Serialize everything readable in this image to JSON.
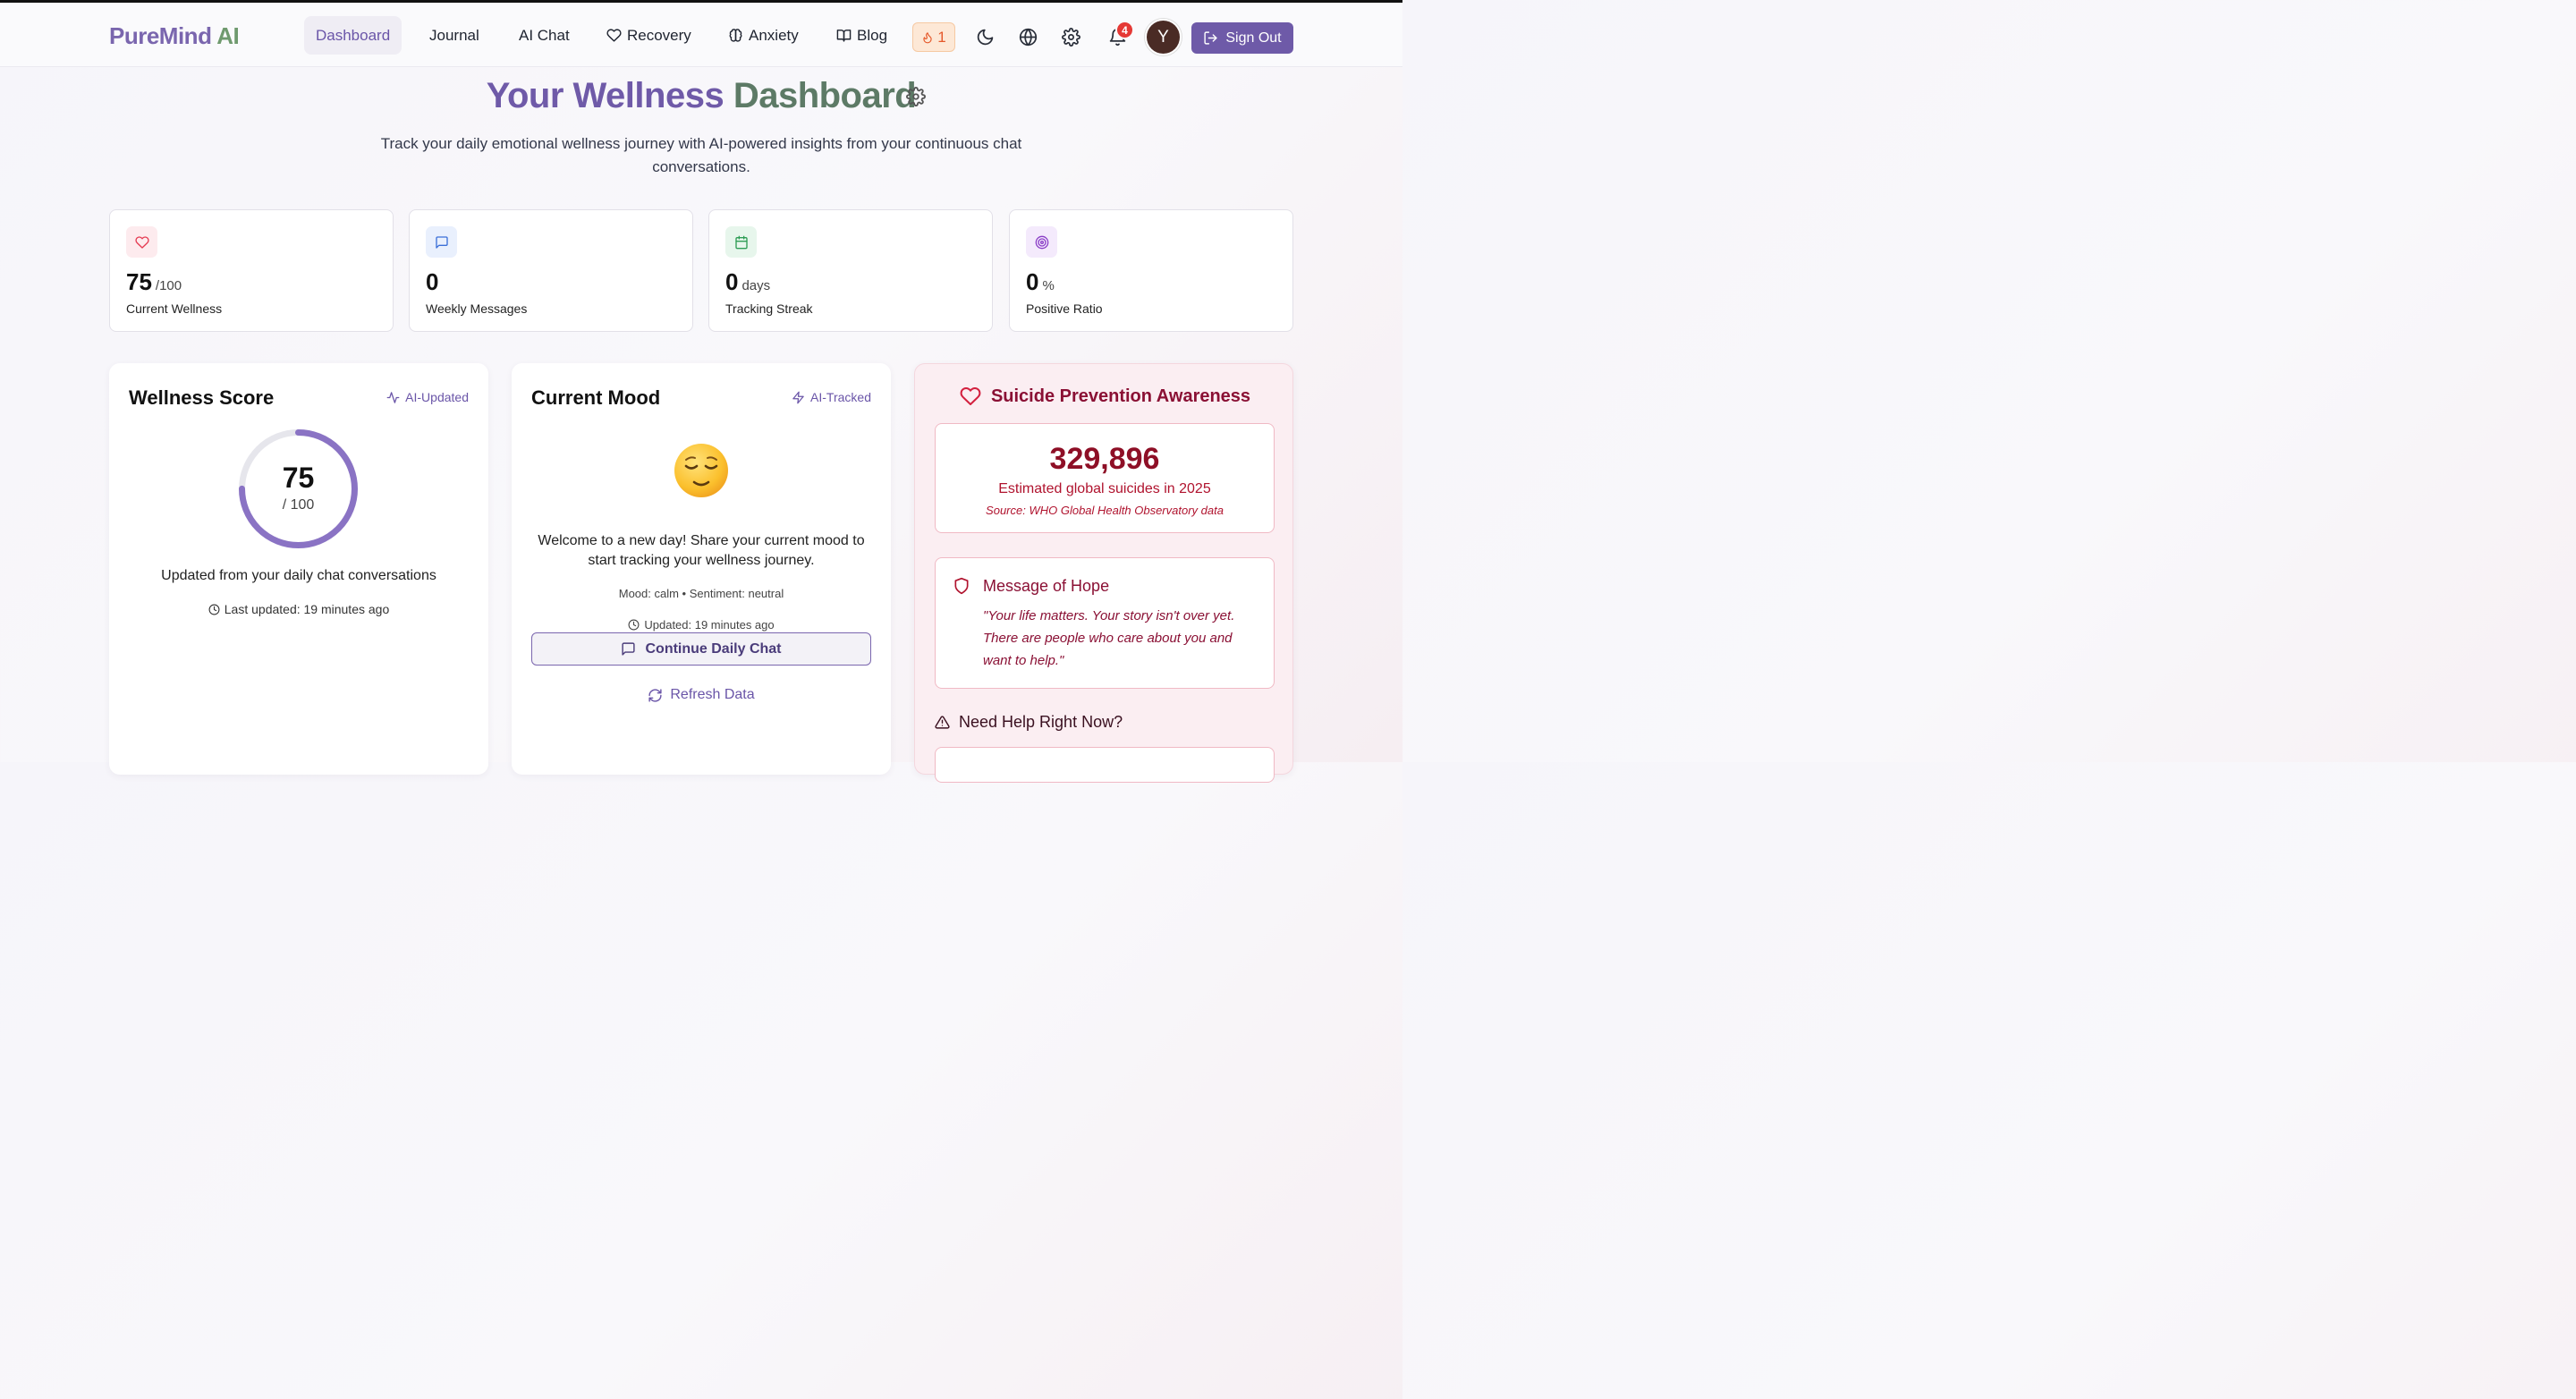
{
  "nav": {
    "brand_part1": "PureMind",
    "brand_part2": "AI",
    "links": [
      {
        "label": "Dashboard",
        "icon": ""
      },
      {
        "label": "Journal",
        "icon": ""
      },
      {
        "label": "AI Chat",
        "icon": ""
      },
      {
        "label": "Recovery",
        "icon": "heart-icon"
      },
      {
        "label": "Anxiety",
        "icon": "brain-icon"
      },
      {
        "label": "Blog",
        "icon": "book-icon"
      }
    ],
    "active": "Dashboard",
    "streak_count": "1",
    "notification_count": "4",
    "avatar_initial": "Y",
    "sign_out_label": "Sign Out"
  },
  "header": {
    "title_part1": "Your Wellness",
    "title_part2": "Dashboard",
    "subtitle": "Track your daily emotional wellness journey with AI-powered insights from your continuous chat conversations."
  },
  "stats": [
    {
      "value": "75",
      "unit": "/100",
      "label": "Current Wellness",
      "icon": "heart-icon",
      "color": "#e53950"
    },
    {
      "value": "0",
      "unit": "",
      "label": "Weekly Messages",
      "icon": "message-icon",
      "color": "#3b6fd8"
    },
    {
      "value": "0",
      "unit": "days",
      "label": "Tracking Streak",
      "icon": "calendar-icon",
      "color": "#2f9d55"
    },
    {
      "value": "0",
      "unit": "%",
      "label": "Positive Ratio",
      "icon": "target-icon",
      "color": "#8b3fc7"
    }
  ],
  "wellness": {
    "title": "Wellness Score",
    "tag": "AI-Updated",
    "score": "75",
    "max": "/ 100",
    "score_fraction": 0.75,
    "updated_text": "Updated from your daily chat conversations",
    "last_updated": "Last updated: 19 minutes ago"
  },
  "mood": {
    "title": "Current Mood",
    "tag": "AI-Tracked",
    "emoji": "relieved-face-icon",
    "message": "Welcome to a new day! Share your current mood to start tracking your wellness journey.",
    "meta": "Mood: calm • Sentiment: neutral",
    "updated": "Updated: 19 minutes ago",
    "continue_label": "Continue Daily Chat",
    "refresh_label": "Refresh Data"
  },
  "prevention": {
    "title": "Suicide Prevention Awareness",
    "number": "329,896",
    "description": "Estimated global suicides in 2025",
    "source": "Source: WHO Global Health Observatory data",
    "hope_title": "Message of Hope",
    "hope_quote": "\"Your life matters. Your story isn't over yet. There are people who care about you and want to help.\"",
    "help_title": "Need Help Right Now?"
  },
  "colors": {
    "accent": "#6e5aa8",
    "brand_green": "#6f9a6e",
    "alert_red": "#8e0f26",
    "ring_track": "#e6e6ec"
  }
}
